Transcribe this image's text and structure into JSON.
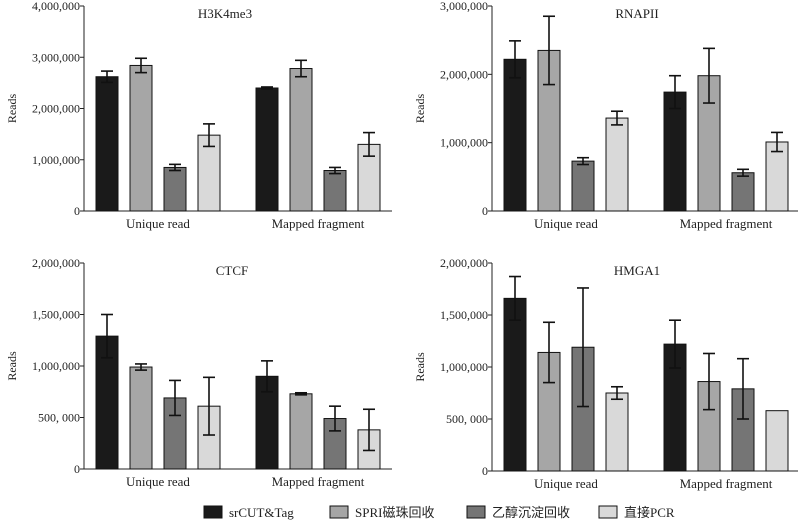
{
  "legend": [
    {
      "label": "srCUT&Tag",
      "color": "#1a1a1a"
    },
    {
      "label": "SPRI磁珠回收",
      "color": "#a6a6a6"
    },
    {
      "label": "乙醇沉淀回收",
      "color": "#757575"
    },
    {
      "label": "直接PCR",
      "color": "#d9d9d9"
    }
  ],
  "chart_data": [
    {
      "type": "bar",
      "title": "H3K4me3",
      "ylabel": "Reads",
      "categories": [
        "Unique read",
        "Mapped fragment"
      ],
      "ylim": [
        0,
        4000000
      ],
      "yticks": [
        "0",
        "1,000,000",
        "2,000,000",
        "3,000,000",
        "4,000,000"
      ],
      "series": [
        {
          "name": "srCUT&Tag",
          "values": [
            2620000,
            2400000
          ],
          "errors": [
            110000,
            20000
          ]
        },
        {
          "name": "SPRI磁珠回收",
          "values": [
            2840000,
            2780000
          ],
          "errors": [
            140000,
            160000
          ]
        },
        {
          "name": "乙醇沉淀回收",
          "values": [
            850000,
            790000
          ],
          "errors": [
            60000,
            60000
          ]
        },
        {
          "name": "直接PCR",
          "values": [
            1480000,
            1300000
          ],
          "errors": [
            220000,
            230000
          ]
        }
      ]
    },
    {
      "type": "bar",
      "title": "RNAPII",
      "ylabel": "Reads",
      "categories": [
        "Unique read",
        "Mapped fragment"
      ],
      "ylim": [
        0,
        3000000
      ],
      "yticks": [
        "0",
        "1,000,000",
        "2,000,000",
        "3,000,000"
      ],
      "series": [
        {
          "name": "srCUT&Tag",
          "values": [
            2220000,
            1740000
          ],
          "errors": [
            270000,
            240000
          ]
        },
        {
          "name": "SPRI磁珠回收",
          "values": [
            2350000,
            1980000
          ],
          "errors": [
            500000,
            400000
          ]
        },
        {
          "name": "乙醇沉淀回收",
          "values": [
            730000,
            560000
          ],
          "errors": [
            50000,
            50000
          ]
        },
        {
          "name": "直接PCR",
          "values": [
            1360000,
            1010000
          ],
          "errors": [
            100000,
            140000
          ]
        }
      ]
    },
    {
      "type": "bar",
      "title": "CTCF",
      "ylabel": "Reads",
      "categories": [
        "Unique read",
        "Mapped fragment"
      ],
      "ylim": [
        0,
        2000000
      ],
      "yticks": [
        "0",
        "500, 000",
        "1,000,000",
        "1,500,000",
        "2,000,000"
      ],
      "series": [
        {
          "name": "srCUT&Tag",
          "values": [
            1290000,
            900000
          ],
          "errors": [
            210000,
            150000
          ]
        },
        {
          "name": "SPRI磁珠回收",
          "values": [
            990000,
            730000
          ],
          "errors": [
            30000,
            10000
          ]
        },
        {
          "name": "乙醇沉淀回收",
          "values": [
            690000,
            490000
          ],
          "errors": [
            170000,
            120000
          ]
        },
        {
          "name": "直接PCR",
          "values": [
            610000,
            380000
          ],
          "errors": [
            280000,
            200000
          ]
        }
      ]
    },
    {
      "type": "bar",
      "title": "HMGA1",
      "ylabel": "Reads",
      "categories": [
        "Unique read",
        "Mapped fragment"
      ],
      "ylim": [
        0,
        2000000
      ],
      "yticks": [
        "0",
        "500, 000",
        "1,000,000",
        "1,500,000",
        "2,000,000"
      ],
      "series": [
        {
          "name": "srCUT&Tag",
          "values": [
            1660000,
            1220000
          ],
          "errors": [
            210000,
            230000
          ]
        },
        {
          "name": "SPRI磁珠回收",
          "values": [
            1140000,
            860000
          ],
          "errors": [
            290000,
            270000
          ]
        },
        {
          "name": "乙醇沉淀回收",
          "values": [
            1190000,
            790000
          ],
          "errors": [
            570000,
            290000
          ]
        },
        {
          "name": "直接PCR",
          "values": [
            750000,
            580000
          ],
          "errors": [
            60000,
            0
          ]
        }
      ]
    }
  ]
}
